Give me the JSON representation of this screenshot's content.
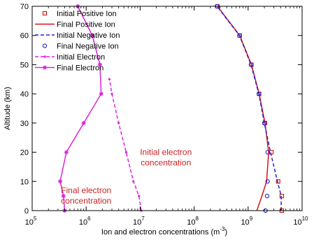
{
  "chart_data": {
    "type": "line",
    "xscale": "log",
    "xlim": [
      100000,
      10000000000
    ],
    "ylim": [
      0,
      70
    ],
    "xticks": [
      {
        "value": 100000,
        "base": "10",
        "exp": "5"
      },
      {
        "value": 1000000,
        "base": "10",
        "exp": "6"
      },
      {
        "value": 10000000,
        "base": "10",
        "exp": "7"
      },
      {
        "value": 100000000,
        "base": "10",
        "exp": "8"
      },
      {
        "value": 1000000000,
        "base": "10",
        "exp": "9"
      },
      {
        "value": 10000000000,
        "base": "10",
        "exp": "10"
      }
    ],
    "yticks": [
      "0",
      "10",
      "20",
      "30",
      "40",
      "50",
      "60",
      "70"
    ],
    "xlabel": "Ion and electron concentrations (m",
    "xlabel_sup": "-3",
    "xlabel_end": ")",
    "ylabel": "Altitude (km)",
    "grid": false,
    "legend_position": "top-left",
    "series": [
      {
        "name": "Initial Positive Ion",
        "color": "#cc2222",
        "line": "none",
        "marker": "square",
        "points": [
          [
            4200000000,
            0
          ],
          [
            4200000000,
            5
          ],
          [
            3600000000,
            10
          ],
          [
            2700000000,
            20
          ],
          [
            2050000000,
            30
          ],
          [
            1600000000,
            40
          ],
          [
            1150000000,
            50
          ],
          [
            700000000,
            60
          ],
          [
            270000000,
            70
          ]
        ]
      },
      {
        "name": "Final Positive Ion",
        "color": "#dd1111",
        "line": "solid",
        "marker": "none",
        "points": [
          [
            1450000000,
            0
          ],
          [
            1800000000,
            5
          ],
          [
            2200000000,
            10
          ],
          [
            2400000000,
            20
          ],
          [
            2050000000,
            30
          ],
          [
            1600000000,
            40
          ],
          [
            1150000000,
            50
          ],
          [
            700000000,
            60
          ],
          [
            270000000,
            70
          ]
        ]
      },
      {
        "name": "Initial Negative Ion",
        "color": "#2222cc",
        "line": "dashed",
        "marker": "none",
        "points": [
          [
            4100000000,
            0
          ],
          [
            4100000000,
            5
          ],
          [
            3500000000,
            10
          ],
          [
            2600000000,
            20
          ],
          [
            2000000000,
            30
          ],
          [
            1580000000,
            40
          ],
          [
            1130000000,
            50
          ],
          [
            690000000,
            60
          ],
          [
            265000000,
            70
          ]
        ]
      },
      {
        "name": "Final Negative Ion",
        "color": "#2222cc",
        "line": "none",
        "marker": "circle",
        "points": [
          [
            2100000000,
            0
          ],
          [
            2250000000,
            5
          ],
          [
            2300000000,
            10
          ],
          [
            2300000000,
            20
          ],
          [
            2000000000,
            30
          ],
          [
            1580000000,
            40
          ],
          [
            1130000000,
            50
          ],
          [
            690000000,
            60
          ],
          [
            265000000,
            70
          ]
        ]
      },
      {
        "name": "Initial Electron",
        "color": "#dd22dd",
        "line": "dashed",
        "marker": "dot",
        "points": [
          [
            10500000,
            0
          ],
          [
            9500000,
            5
          ],
          [
            7500000,
            10
          ],
          [
            5500000,
            20
          ],
          [
            4000000,
            30
          ],
          [
            3000000,
            40
          ],
          [
            2700000,
            45
          ]
        ]
      },
      {
        "name": "Final Electron",
        "color": "#dd22dd",
        "line": "solid",
        "marker": "star",
        "points": [
          [
            400000,
            0
          ],
          [
            380000,
            5
          ],
          [
            330000,
            10
          ],
          [
            430000,
            20
          ],
          [
            900000,
            30
          ],
          [
            1900000,
            40
          ],
          [
            1800000,
            50
          ],
          [
            1300000,
            60
          ],
          [
            700000,
            70
          ]
        ]
      }
    ],
    "annotations": [
      {
        "lines": [
          "Initial electron",
          "concentration"
        ],
        "color": "#cc2222",
        "x": 30000000,
        "y": 19
      },
      {
        "lines": [
          "Final electron",
          "concentration"
        ],
        "color": "#cc2222",
        "x": 1000000,
        "y": 6
      }
    ]
  }
}
